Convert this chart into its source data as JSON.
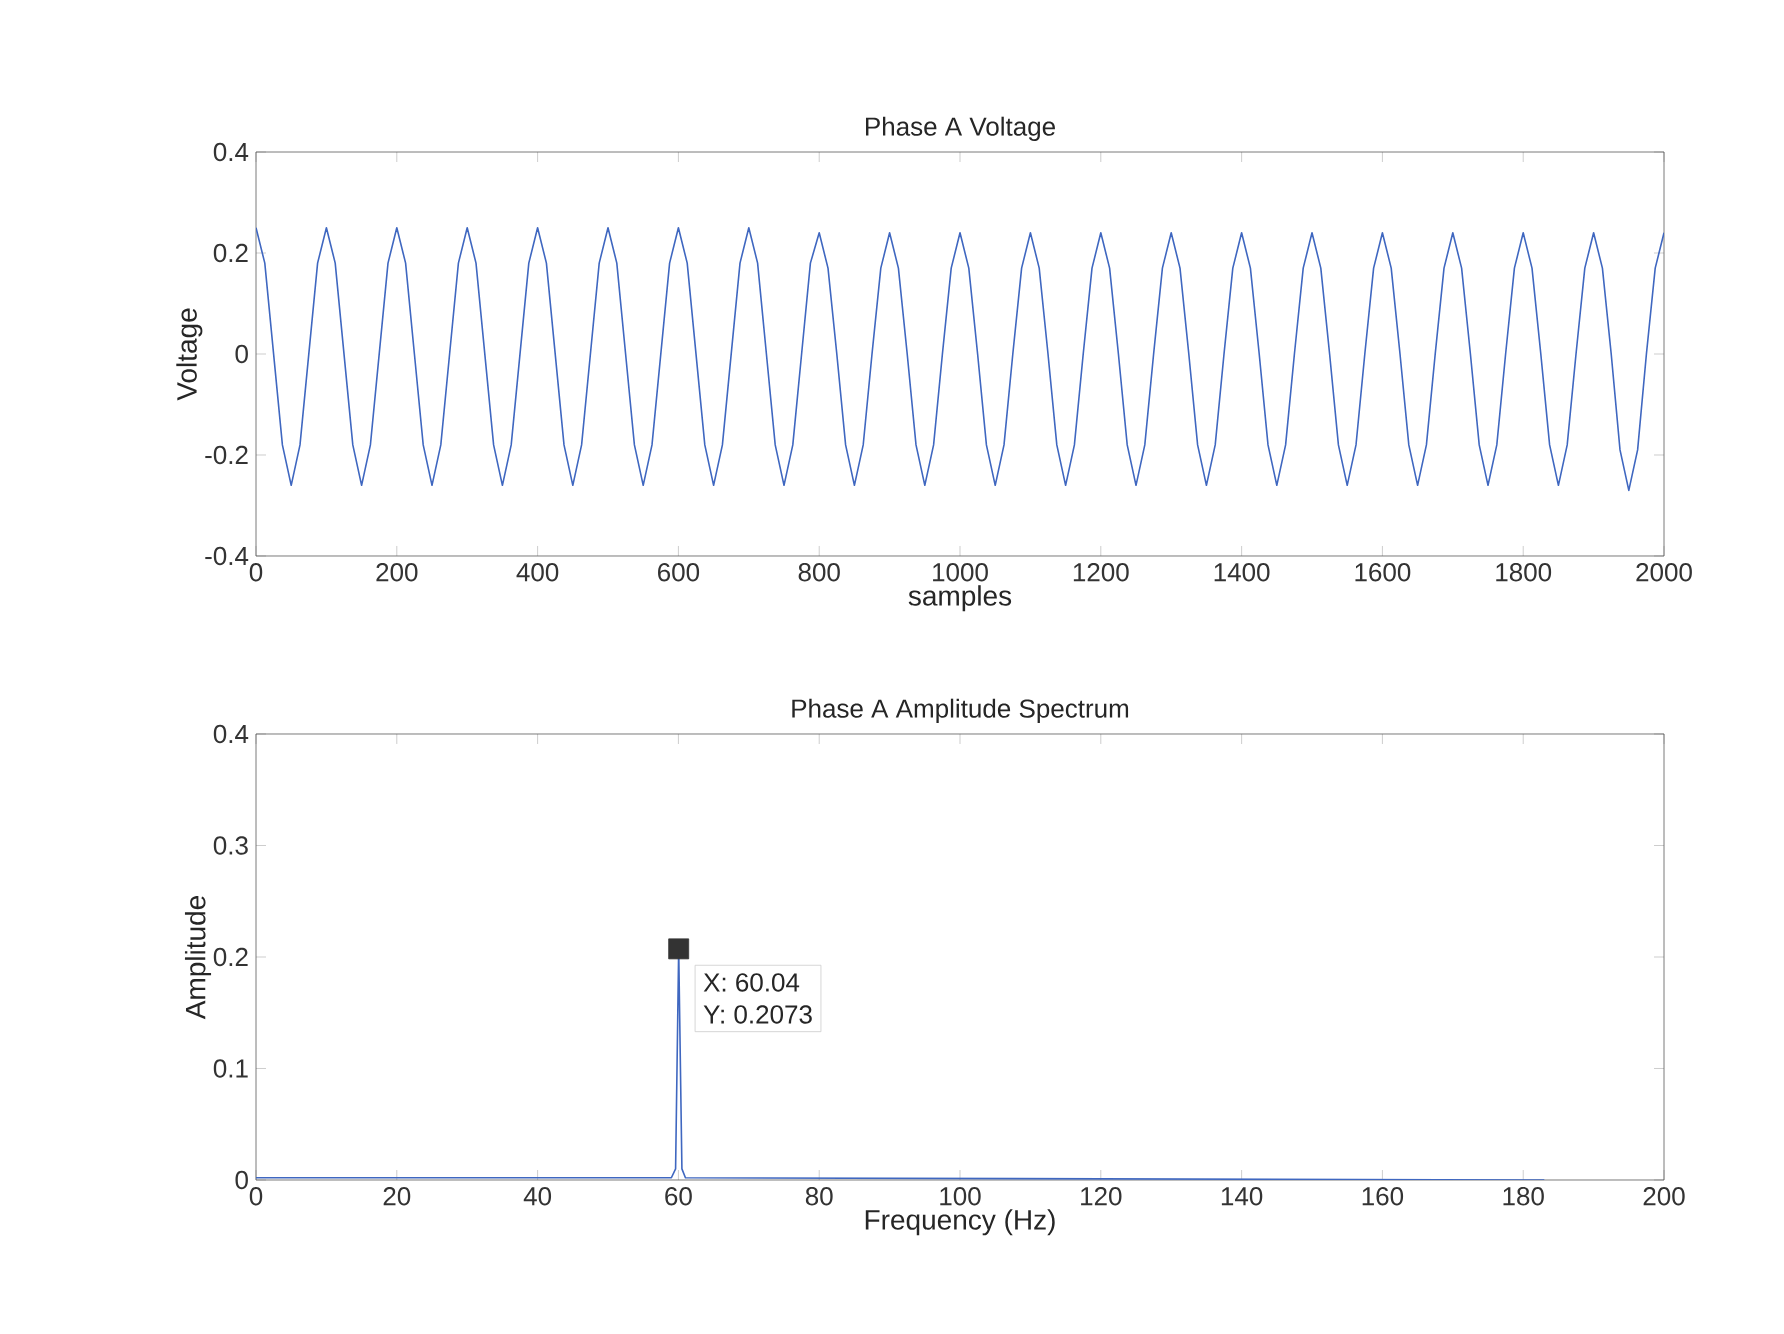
{
  "chart_data": [
    {
      "type": "line",
      "title": "Phase A Voltage",
      "xlabel": "samples",
      "ylabel": "Voltage",
      "xlim": [
        0,
        2000
      ],
      "ylim": [
        -0.4,
        0.4
      ],
      "xticks": [
        0,
        200,
        400,
        600,
        800,
        1000,
        1200,
        1400,
        1600,
        1800,
        2000
      ],
      "yticks": [
        -0.4,
        -0.2,
        0,
        0.2,
        0.4
      ],
      "series": [
        {
          "color": "#3f67c0",
          "x": [
            0,
            12.5,
            25,
            37.5,
            50,
            62.5,
            75,
            87.5,
            100,
            112.5,
            125,
            137.5,
            150,
            162.5,
            175,
            187.5,
            200,
            212.5,
            225,
            237.5,
            250,
            262.5,
            275,
            287.5,
            300,
            312.5,
            325,
            337.5,
            350,
            362.5,
            375,
            387.5,
            400,
            412.5,
            425,
            437.5,
            450,
            462.5,
            475,
            487.5,
            500,
            512.5,
            525,
            537.5,
            550,
            562.5,
            575,
            587.5,
            600,
            612.5,
            625,
            637.5,
            650,
            662.5,
            675,
            687.5,
            700,
            712.5,
            725,
            737.5,
            750,
            762.5,
            775,
            787.5,
            800,
            812.5,
            825,
            837.5,
            850,
            862.5,
            875,
            887.5,
            900,
            912.5,
            925,
            937.5,
            950,
            962.5,
            975,
            987.5,
            1000,
            1012.5,
            1025,
            1037.5,
            1050,
            1062.5,
            1075,
            1087.5,
            1100,
            1112.5,
            1125,
            1137.5,
            1150,
            1162.5,
            1175,
            1187.5,
            1200,
            1212.5,
            1225,
            1237.5,
            1250,
            1262.5,
            1275,
            1287.5,
            1300,
            1312.5,
            1325,
            1337.5,
            1350,
            1362.5,
            1375,
            1387.5,
            1400,
            1412.5,
            1425,
            1437.5,
            1450,
            1462.5,
            1475,
            1487.5,
            1500,
            1512.5,
            1525,
            1537.5,
            1550,
            1562.5,
            1575,
            1587.5,
            1600,
            1612.5,
            1625,
            1637.5,
            1650,
            1662.5,
            1675,
            1687.5,
            1700,
            1712.5,
            1725,
            1737.5,
            1750,
            1762.5,
            1775,
            1787.5,
            1800,
            1812.5,
            1825,
            1837.5,
            1850,
            1862.5,
            1875,
            1887.5,
            1900,
            1912.5,
            1925,
            1937.5,
            1950,
            1962.5,
            1975,
            1987.5,
            2000
          ],
          "values": [
            0.25,
            0.18,
            0,
            -0.18,
            -0.26,
            -0.18,
            0,
            0.18,
            0.25,
            0.18,
            0,
            -0.18,
            -0.26,
            -0.18,
            0,
            0.18,
            0.25,
            0.18,
            0,
            -0.18,
            -0.26,
            -0.18,
            0,
            0.18,
            0.25,
            0.18,
            0,
            -0.18,
            -0.26,
            -0.18,
            0,
            0.18,
            0.25,
            0.18,
            0,
            -0.18,
            -0.26,
            -0.18,
            0,
            0.18,
            0.25,
            0.18,
            0,
            -0.18,
            -0.26,
            -0.18,
            0,
            0.18,
            0.25,
            0.18,
            0,
            -0.18,
            -0.26,
            -0.18,
            0,
            0.18,
            0.25,
            0.18,
            0,
            -0.18,
            -0.26,
            -0.18,
            0,
            0.18,
            0.24,
            0.17,
            0,
            -0.18,
            -0.26,
            -0.18,
            0,
            0.17,
            0.24,
            0.17,
            0,
            -0.18,
            -0.26,
            -0.18,
            0,
            0.17,
            0.24,
            0.17,
            0,
            -0.18,
            -0.26,
            -0.18,
            0,
            0.17,
            0.24,
            0.17,
            0,
            -0.18,
            -0.26,
            -0.18,
            0,
            0.17,
            0.24,
            0.17,
            0,
            -0.18,
            -0.26,
            -0.18,
            0,
            0.17,
            0.24,
            0.17,
            0,
            -0.18,
            -0.26,
            -0.18,
            0,
            0.17,
            0.24,
            0.17,
            0,
            -0.18,
            -0.26,
            -0.18,
            0,
            0.17,
            0.24,
            0.17,
            0,
            -0.18,
            -0.26,
            -0.18,
            0,
            0.17,
            0.24,
            0.17,
            0,
            -0.18,
            -0.26,
            -0.18,
            0,
            0.17,
            0.24,
            0.17,
            0,
            -0.18,
            -0.26,
            -0.18,
            0,
            0.17,
            0.24,
            0.17,
            0,
            -0.18,
            -0.26,
            -0.18,
            0,
            0.17,
            0.24,
            0.17,
            0,
            -0.19,
            -0.27,
            -0.19,
            0,
            0.17,
            0.24
          ]
        }
      ]
    },
    {
      "type": "line",
      "title": "Phase A Amplitude Spectrum",
      "xlabel": "Frequency (Hz)",
      "ylabel": "Amplitude",
      "xlim": [
        0,
        200
      ],
      "ylim": [
        0,
        0.4
      ],
      "xticks": [
        0,
        20,
        40,
        60,
        80,
        100,
        120,
        140,
        160,
        180,
        200
      ],
      "yticks": [
        0,
        0.1,
        0.2,
        0.3,
        0.4
      ],
      "annotations": [
        {
          "text": "X: 60.04",
          "x": 60.04,
          "y": 0.2073
        },
        {
          "text": "Y: 0.2073",
          "x": 60.04,
          "y": 0.2073
        }
      ],
      "series": [
        {
          "color": "#3f67c0",
          "x": [
            0,
            59,
            59.6,
            60.04,
            60.5,
            61,
            183
          ],
          "values": [
            0.002,
            0.002,
            0.01,
            0.2073,
            0.01,
            0.002,
            0
          ]
        },
        {
          "type": "scatter",
          "marker": "square",
          "color": "#333333",
          "x": [
            60.04
          ],
          "values": [
            0.2073
          ]
        }
      ]
    }
  ]
}
